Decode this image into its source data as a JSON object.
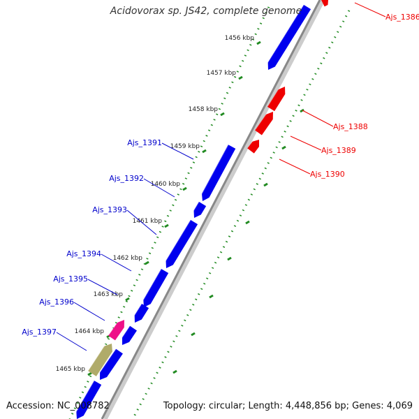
{
  "title": "Acidovorax sp. JS42, complete genome",
  "accession": "Accession: NC_008782",
  "topology": "Topology: circular; Length: 4,448,856 bp; Genes: 4,069",
  "colors": {
    "forward_gene": "#0000ee",
    "reverse_gene": "#ee0000",
    "pink_gene": "#ee1188",
    "olive_gene": "#b0ab6a",
    "ticks": "#228b22",
    "backbone": "#888888",
    "forward_label": "#0000cc",
    "reverse_label": "#ee0000",
    "kbp_label": "#222222"
  },
  "kbp_labels": [
    "1456 kbp",
    "1457 kbp",
    "1458 kbp",
    "1459 kbp",
    "1460 kbp",
    "1461 kbp",
    "1462 kbp",
    "1463 kbp",
    "1464 kbp",
    "1465 kbp"
  ],
  "reverse_genes": [
    {
      "label": "Ajs_1386"
    },
    {
      "label": "Ajs_1388"
    },
    {
      "label": "Ajs_1389"
    },
    {
      "label": "Ajs_1390"
    }
  ],
  "forward_genes": [
    {
      "label": "Ajs_1391"
    },
    {
      "label": "Ajs_1392"
    },
    {
      "label": "Ajs_1393"
    },
    {
      "label": "Ajs_1394"
    },
    {
      "label": "Ajs_1395"
    },
    {
      "label": "Ajs_1396"
    },
    {
      "label": "Ajs_1397"
    }
  ]
}
